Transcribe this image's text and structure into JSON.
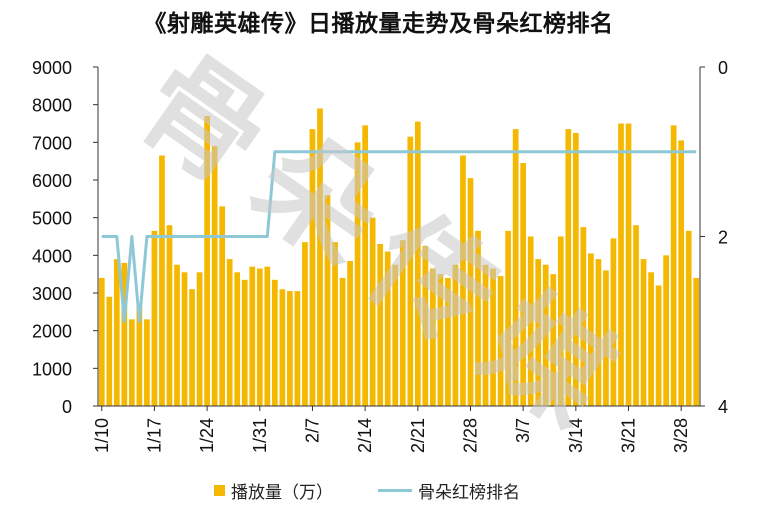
{
  "title": "《射雕英雄传》日播放量走势及骨朵红榜排名",
  "watermark": "骨朵传媒",
  "colors": {
    "bar": "#f5b800",
    "line": "#8ec8d6",
    "axis": "#333333"
  },
  "legend": {
    "bars_label": "播放量（万）",
    "line_label": "骨朵红榜排名"
  },
  "chart_data": {
    "type": "bar",
    "title": "《射雕英雄传》日播放量走势及骨朵红榜排名",
    "y_left": {
      "ylim": [
        0,
        9000
      ],
      "ticks": [
        "0",
        "1000",
        "2000",
        "3000",
        "4000",
        "5000",
        "6000",
        "7000",
        "8000",
        "9000"
      ]
    },
    "y_right": {
      "ylim": [
        0,
        4
      ],
      "reversed": true,
      "ticks": [
        "0",
        "2",
        "4"
      ]
    },
    "x_tick_labels": [
      "1/10",
      "1/17",
      "1/24",
      "1/31",
      "2/7",
      "2/14",
      "2/21",
      "2/28",
      "3/7",
      "3/14",
      "3/21",
      "3/28"
    ],
    "x_tick_index": [
      0,
      7,
      14,
      21,
      28,
      35,
      42,
      49,
      56,
      63,
      70,
      77
    ],
    "series": [
      {
        "name": "播放量（万）",
        "kind": "bar",
        "values": [
          3400,
          2900,
          3900,
          3800,
          2300,
          2700,
          2300,
          4650,
          6650,
          4800,
          3750,
          3550,
          3100,
          3550,
          7700,
          6900,
          5300,
          3900,
          3550,
          3350,
          3700,
          3650,
          3700,
          3350,
          3100,
          3050,
          3050,
          4350,
          7350,
          7900,
          5600,
          4350,
          3400,
          3850,
          7000,
          7450,
          5000,
          4300,
          4100,
          3750,
          4400,
          7150,
          7550,
          4250,
          3650,
          3500,
          3400,
          3750,
          6650,
          6050,
          4650,
          3750,
          3650,
          3450,
          4650,
          7350,
          6450,
          4500,
          3900,
          3750,
          3500,
          4500,
          7350,
          7250,
          4750,
          4050,
          3900,
          3600,
          4450,
          7500,
          7500,
          4800,
          3900,
          3550,
          3200,
          4000,
          7450,
          7050,
          4650,
          3400
        ]
      },
      {
        "name": "骨朵红榜排名",
        "kind": "line",
        "values": [
          2,
          2,
          2,
          3,
          2,
          3,
          2,
          2,
          2,
          2,
          2,
          2,
          2,
          2,
          2,
          2,
          2,
          2,
          2,
          2,
          2,
          2,
          2,
          1,
          1,
          1,
          1,
          1,
          1,
          1,
          1,
          1,
          1,
          1,
          1,
          1,
          1,
          1,
          1,
          1,
          1,
          1,
          1,
          1,
          1,
          1,
          1,
          1,
          1,
          1,
          1,
          1,
          1,
          1,
          1,
          1,
          1,
          1,
          1,
          1,
          1,
          1,
          1,
          1,
          1,
          1,
          1,
          1,
          1,
          1,
          1,
          1,
          1,
          1,
          1,
          1,
          1,
          1,
          1,
          1
        ]
      }
    ]
  }
}
